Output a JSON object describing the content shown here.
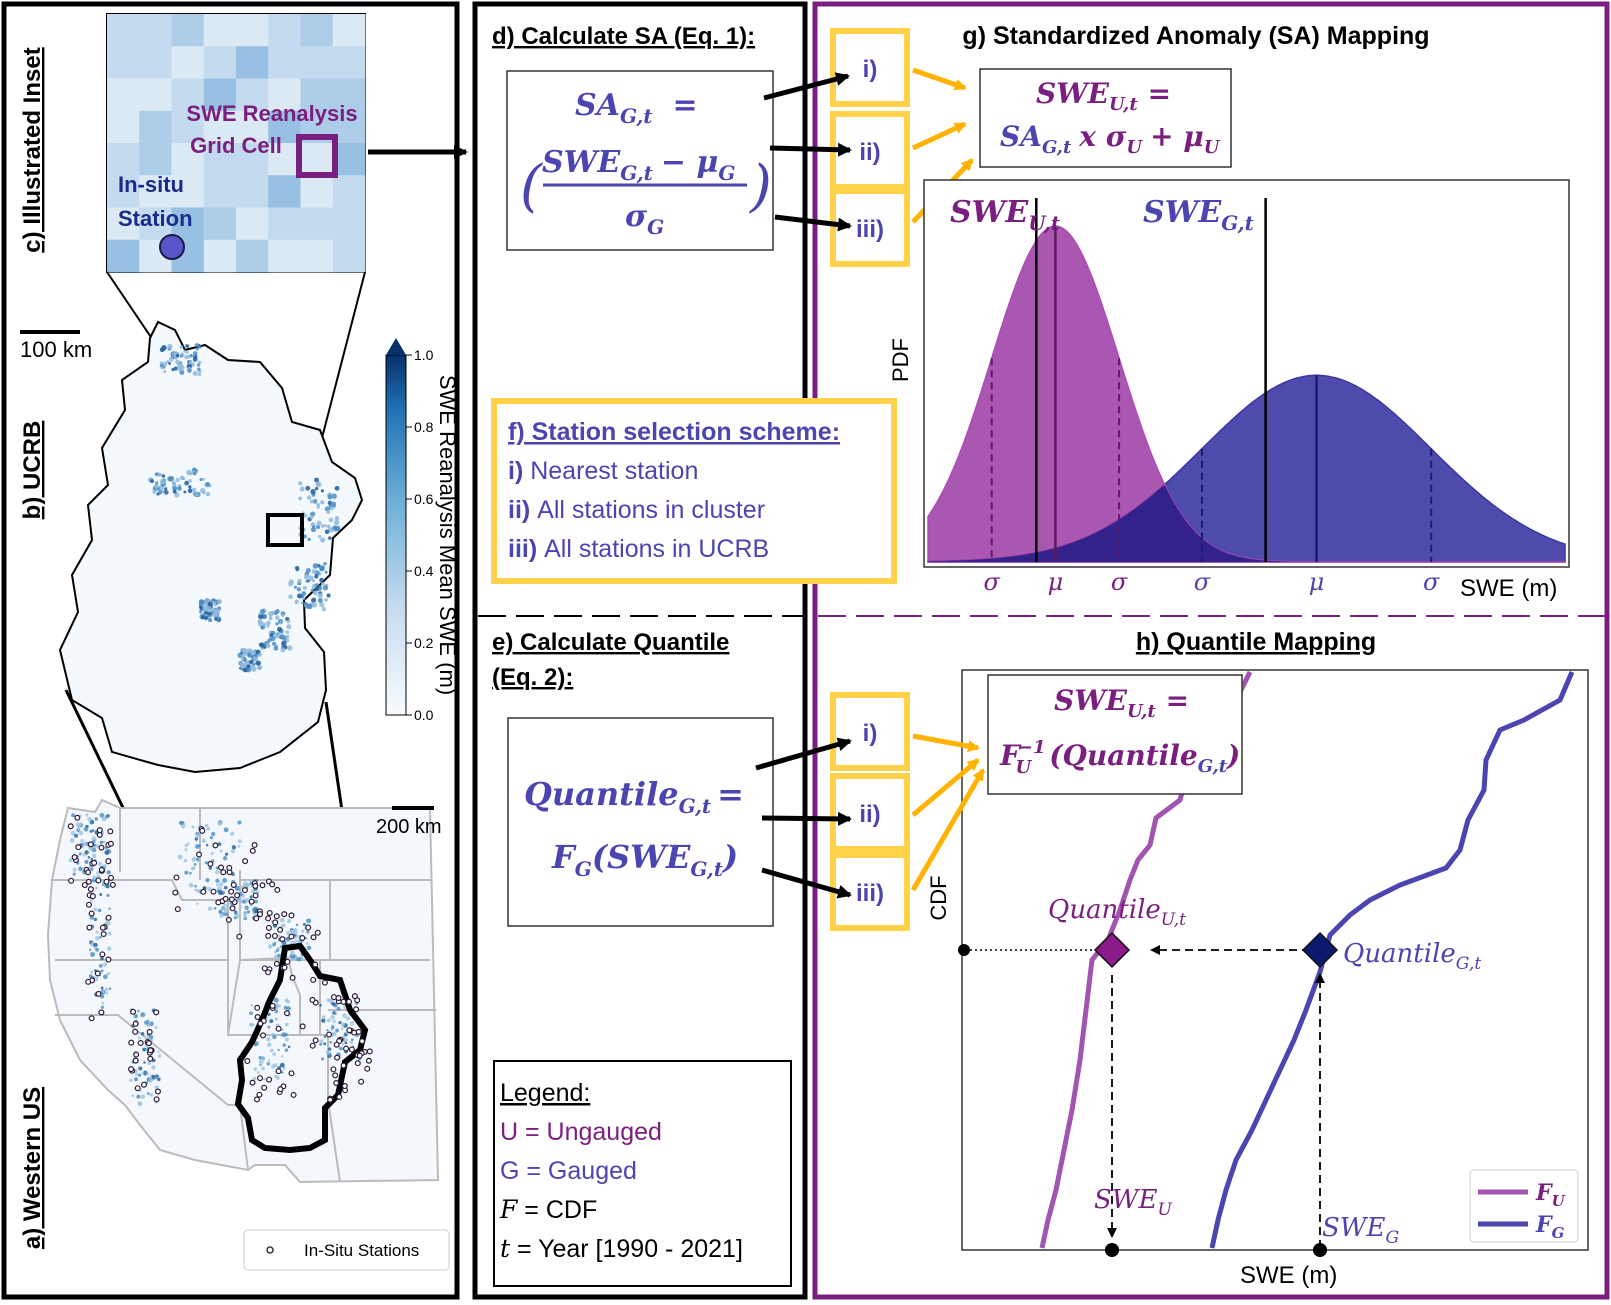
{
  "panels": {
    "a": "a) Western US",
    "b": "b) UCRB",
    "c": "c) Illustrated Inset",
    "d": "d) Calculate SA (Eq. 1):",
    "e_line1": "e) Calculate Quantile",
    "e_line2": "(Eq. 2):",
    "f": "f) Station selection scheme:",
    "g": "g) Standardized Anomaly (SA) Mapping",
    "h": "h) Quantile Mapping"
  },
  "inset": {
    "grid_cell_line1": "SWE Reanalysis",
    "grid_cell_line2": "Grid Cell",
    "station_line1": "In-situ",
    "station_line2": "Station"
  },
  "map": {
    "scale_ucrb": "100 km",
    "scale_us": "200 km",
    "legend_stations": "In-Situ Stations",
    "colorbar_label": "SWE Reanalysis Mean SWE (m)",
    "colorbar_ticks": [
      "1.0",
      "0.8",
      "0.6",
      "0.4",
      "0.2",
      "0.0"
    ],
    "colors": {
      "swe_dark": "#0b3d7a",
      "swe_mid": "#4a8cc4",
      "swe_light": "#e6f0f9"
    }
  },
  "eq_sa": {
    "lhs": "SA",
    "lhs_sub": "G,t",
    "eq": "=",
    "num": "SWE",
    "num_sub": "G,t",
    "minus": "− μ",
    "minus_sub": "G",
    "den": "σ",
    "den_sub": "G"
  },
  "eq_q": {
    "lhs": "Quantile",
    "lhs_sub": "G,t",
    "eq": "=",
    "rhs": "F",
    "rhs_sub": "G",
    "rhs_arg": "(SWE",
    "rhs_arg_sub": "G,t",
    "rhs_close": ")"
  },
  "scheme_boxes": [
    "i)",
    "ii)",
    "iii)"
  ],
  "selection": {
    "items": [
      "i) Nearest station",
      "ii) All stations in cluster",
      "iii) All stations in UCRB"
    ]
  },
  "legend": {
    "title": "Legend:",
    "items": [
      "U = Ungauged",
      "G = Gauged",
      "F = CDF",
      "t = Year [1990 - 2021]"
    ]
  },
  "sa_map": {
    "eq_line1": "SWE",
    "eq_line1_sub": "U,t",
    "eq_line1_eq": "=",
    "eq_line2a": "SA",
    "eq_line2a_sub": "G,t",
    "eq_line2b": "x σ",
    "eq_line2b_sub": "U",
    "eq_line2c": "+ μ",
    "eq_line2c_sub": "U",
    "pdf_label": "PDF",
    "x_label": "SWE (m)",
    "swe_u": "SWE",
    "swe_u_sub": "U,t",
    "swe_g": "SWE",
    "swe_g_sub": "G,t",
    "tick_sigma": "σ",
    "tick_mu": "μ"
  },
  "chart_data": {
    "type": "area",
    "title": "g) Standardized Anomaly (SA) Mapping",
    "xlabel": "SWE (m)",
    "ylabel": "PDF",
    "series": [
      {
        "name": "U",
        "mu": 1.0,
        "sigma": 0.5,
        "swe_t": 0.85
      },
      {
        "name": "G",
        "mu": 3.05,
        "sigma": 0.9,
        "swe_t": 2.65
      }
    ],
    "colors": {
      "U": "#8e2a8e",
      "G": "#3b37a3"
    }
  },
  "q_map": {
    "eq_line1": "SWE",
    "eq_line1_sub": "U,t",
    "eq_line1_eq": "=",
    "eq_line2": "F",
    "eq_line2_sub": "U",
    "eq_line2_sup": "−1",
    "eq_line2_arg": "(Quantile",
    "eq_line2_arg_sub": "G,t",
    "eq_line2_close": ")",
    "cdf_label": "CDF",
    "x_label": "SWE (m)",
    "q_u": "Quantile",
    "q_u_sub": "U,t",
    "q_g": "Quantile",
    "q_g_sub": "G,t",
    "swe_u": "SWE",
    "swe_u_sub": "U",
    "swe_g": "SWE",
    "swe_g_sub": "G",
    "legend_fu": "F",
    "legend_fu_sub": "U",
    "legend_fg": "F",
    "legend_fg_sub": "G"
  },
  "colors": {
    "purple": "#7a1f7f",
    "blue": "#4a45b0",
    "navy": "#1a2b8c",
    "yellow": "#ffd24a",
    "yellow_arrow": "#ffb300"
  }
}
